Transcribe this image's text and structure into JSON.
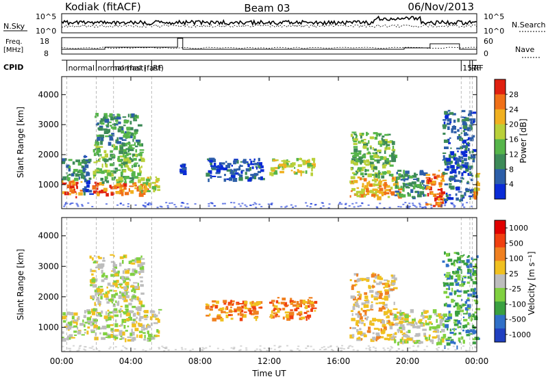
{
  "header": {
    "station": "Kodiak (fitACF)",
    "beam": "Beam 03",
    "date": "06/Nov/2013"
  },
  "sky_panel": {
    "left_label": "N.Sky",
    "right_label": "N.Search",
    "left_ticks": [
      "10^5",
      "10^0"
    ],
    "right_ticks": [
      "10^5",
      "10^0"
    ]
  },
  "freq_panel": {
    "left_label_line1": "Freq.",
    "left_label_line2": "[MHz]",
    "left_ticks": [
      "18",
      "8"
    ],
    "right_label": "Nave",
    "right_ticks": [
      "60",
      "0"
    ]
  },
  "cpid_panel": {
    "label": "CPID",
    "modes": [
      {
        "text": "normal",
        "hour": 0.3
      },
      {
        "text": "normal (fast)",
        "hour": 2.0
      },
      {
        "text": "normal (fast)",
        "hour": 3.0
      },
      {
        "text": "RF",
        "hour": 5.2
      },
      {
        "text": "157",
        "hour": 23.1
      },
      {
        "text": "RF",
        "hour": 23.6
      },
      {
        "text": "RF",
        "hour": 23.75
      }
    ]
  },
  "chart_data": [
    {
      "type": "heatmap",
      "title": "Power",
      "xlabel": "Time UT",
      "ylabel": "Slant Range [km]",
      "xticks": [
        "00:00",
        "04:00",
        "08:00",
        "12:00",
        "16:00",
        "20:00",
        "00:00"
      ],
      "xlim_hours": [
        0,
        24
      ],
      "yticks": [
        1000,
        2000,
        3000,
        4000
      ],
      "ylim": [
        200,
        4600
      ],
      "colorbar": {
        "label": "Power [dB]",
        "ticks": [
          "4",
          "8",
          "12",
          "16",
          "20",
          "24",
          "28"
        ],
        "colors": [
          "#0a2bd6",
          "#2c5ea8",
          "#3d8a58",
          "#56b54a",
          "#b9d03a",
          "#f0b020",
          "#f07018",
          "#e02010"
        ]
      },
      "echo_regions": [
        {
          "t0": 0.0,
          "t1": 1.1,
          "r0": 600,
          "r1": 1200,
          "level": 6
        },
        {
          "t0": 0.0,
          "t1": 1.3,
          "r0": 1200,
          "r1": 1900,
          "level": 2
        },
        {
          "t0": 1.1,
          "t1": 1.6,
          "r0": 700,
          "r1": 2000,
          "level": 1
        },
        {
          "t0": 1.6,
          "t1": 4.8,
          "r0": 700,
          "r1": 1100,
          "level": 6
        },
        {
          "t0": 1.8,
          "t1": 4.6,
          "r0": 1100,
          "r1": 2400,
          "level": 3
        },
        {
          "t0": 1.9,
          "t1": 4.4,
          "r0": 2400,
          "r1": 3400,
          "level": 2
        },
        {
          "t0": 4.4,
          "t1": 5.6,
          "r0": 800,
          "r1": 1300,
          "level": 4
        },
        {
          "t0": 6.8,
          "t1": 7.1,
          "r0": 1300,
          "r1": 1800,
          "level": 0
        },
        {
          "t0": 8.3,
          "t1": 11.5,
          "r0": 1200,
          "r1": 1900,
          "level": 1
        },
        {
          "t0": 12.0,
          "t1": 14.6,
          "r0": 1400,
          "r1": 1900,
          "level": 4
        },
        {
          "t0": 16.6,
          "t1": 19.5,
          "r0": 600,
          "r1": 1300,
          "level": 5
        },
        {
          "t0": 16.7,
          "t1": 19.2,
          "r0": 1300,
          "r1": 2800,
          "level": 3
        },
        {
          "t0": 19.2,
          "t1": 21.0,
          "r0": 600,
          "r1": 1500,
          "level": 2
        },
        {
          "t0": 21.0,
          "t1": 22.0,
          "r0": 300,
          "r1": 1500,
          "level": 6
        },
        {
          "t0": 22.0,
          "t1": 23.8,
          "r0": 500,
          "r1": 3500,
          "level": 1
        },
        {
          "t0": 23.8,
          "t1": 24.0,
          "r0": 600,
          "r1": 1400,
          "level": 5
        }
      ]
    },
    {
      "type": "heatmap",
      "title": "Velocity",
      "xlabel": "Time UT",
      "ylabel": "Slant Range [km]",
      "xticks": [
        "00:00",
        "04:00",
        "08:00",
        "12:00",
        "16:00",
        "20:00",
        "00:00"
      ],
      "xlim_hours": [
        0,
        24
      ],
      "yticks": [
        1000,
        2000,
        3000,
        4000
      ],
      "ylim": [
        200,
        4600
      ],
      "colorbar": {
        "label": "Velocity [m s⁻¹]",
        "ticks": [
          "1000",
          "500",
          "100",
          "25",
          "-25",
          "-100",
          "-500",
          "-1000"
        ],
        "colors": [
          "#2040c0",
          "#3070c8",
          "#3aa040",
          "#80d040",
          "#bdbdbd",
          "#f0c020",
          "#f08020",
          "#f04010",
          "#e00000"
        ]
      },
      "echo_regions": [
        {
          "t0": 0.0,
          "t1": 5.6,
          "r0": 600,
          "r1": 1600,
          "level": 4
        },
        {
          "t0": 1.6,
          "t1": 4.6,
          "r0": 1600,
          "r1": 3400,
          "level": 4
        },
        {
          "t0": 8.3,
          "t1": 11.5,
          "r0": 1300,
          "r1": 1900,
          "level": 6
        },
        {
          "t0": 12.0,
          "t1": 14.6,
          "r0": 1300,
          "r1": 2000,
          "level": 6
        },
        {
          "t0": 16.6,
          "t1": 19.2,
          "r0": 600,
          "r1": 2800,
          "level": 5
        },
        {
          "t0": 19.2,
          "t1": 22.0,
          "r0": 500,
          "r1": 1600,
          "level": 4
        },
        {
          "t0": 22.0,
          "t1": 24.0,
          "r0": 400,
          "r1": 3500,
          "level": 2
        }
      ]
    }
  ]
}
